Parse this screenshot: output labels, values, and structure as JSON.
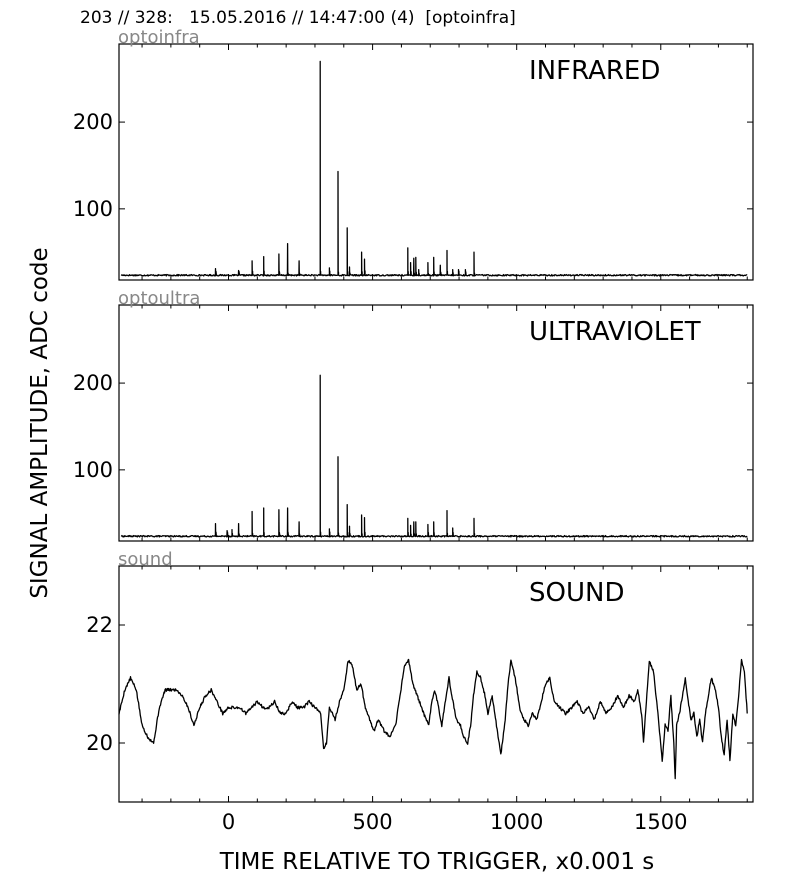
{
  "header": {
    "text": "203 // 328:   15.05.2016 // 14:47:00 (4)  [optoinfra]"
  },
  "figure": {
    "ylabel": "SIGNAL AMPLITUDE,  ADC code",
    "xlabel": "TIME RELATIVE TO TRIGGER,   x0.001 s"
  },
  "chart_data": [
    {
      "type": "line",
      "corner_label": "optoinfra",
      "title": "INFRARED",
      "xlim": [
        -380,
        1820
      ],
      "ylim": [
        18,
        290
      ],
      "yticks": [
        100,
        200
      ],
      "xticks": [
        0,
        500,
        1000,
        1500
      ],
      "grid": false,
      "baseline": 23.5,
      "spikes": [
        [
          -45,
          31
        ],
        [
          35,
          29
        ],
        [
          82,
          40
        ],
        [
          122,
          45
        ],
        [
          175,
          48
        ],
        [
          205,
          60
        ],
        [
          245,
          40
        ],
        [
          318,
          270
        ],
        [
          350,
          32
        ],
        [
          380,
          143
        ],
        [
          412,
          78
        ],
        [
          420,
          33
        ],
        [
          462,
          50
        ],
        [
          472,
          42
        ],
        [
          622,
          55
        ],
        [
          632,
          38
        ],
        [
          643,
          43
        ],
        [
          650,
          44
        ],
        [
          660,
          30
        ],
        [
          692,
          38
        ],
        [
          712,
          44
        ],
        [
          735,
          35
        ],
        [
          758,
          52
        ],
        [
          778,
          30
        ],
        [
          798,
          30
        ],
        [
          822,
          30
        ],
        [
          852,
          50
        ]
      ]
    },
    {
      "type": "line",
      "corner_label": "optoultra",
      "title": "ULTRAVIOLET",
      "xlim": [
        -380,
        1820
      ],
      "ylim": [
        18,
        290
      ],
      "yticks": [
        100,
        200
      ],
      "xticks": [
        0,
        500,
        1000,
        1500
      ],
      "grid": false,
      "baseline": 23.5,
      "spikes": [
        [
          -45,
          38
        ],
        [
          -5,
          30
        ],
        [
          12,
          31
        ],
        [
          35,
          38
        ],
        [
          82,
          52
        ],
        [
          122,
          56
        ],
        [
          175,
          54
        ],
        [
          205,
          56
        ],
        [
          245,
          40
        ],
        [
          318,
          209
        ],
        [
          350,
          32
        ],
        [
          380,
          115
        ],
        [
          412,
          60
        ],
        [
          420,
          35
        ],
        [
          462,
          48
        ],
        [
          472,
          45
        ],
        [
          622,
          44
        ],
        [
          632,
          36
        ],
        [
          643,
          40
        ],
        [
          650,
          40
        ],
        [
          692,
          37
        ],
        [
          712,
          40
        ],
        [
          758,
          53
        ],
        [
          778,
          33
        ],
        [
          852,
          44
        ]
      ]
    },
    {
      "type": "line",
      "corner_label": "sound",
      "title": "SOUND",
      "xlim": [
        -380,
        1820
      ],
      "ylim": [
        19.0,
        23.0
      ],
      "yticks": [
        20,
        22
      ],
      "xticks": [
        0,
        500,
        1000,
        1500
      ],
      "grid": false,
      "points": [
        [
          -380,
          20.5
        ],
        [
          -360,
          20.9
        ],
        [
          -340,
          21.1
        ],
        [
          -320,
          20.9
        ],
        [
          -300,
          20.3
        ],
        [
          -280,
          20.1
        ],
        [
          -260,
          20.0
        ],
        [
          -240,
          20.6
        ],
        [
          -220,
          20.9
        ],
        [
          -200,
          20.9
        ],
        [
          -180,
          20.9
        ],
        [
          -160,
          20.8
        ],
        [
          -140,
          20.6
        ],
        [
          -120,
          20.3
        ],
        [
          -100,
          20.6
        ],
        [
          -80,
          20.8
        ],
        [
          -60,
          20.9
        ],
        [
          -40,
          20.7
        ],
        [
          -20,
          20.5
        ],
        [
          0,
          20.6
        ],
        [
          20,
          20.6
        ],
        [
          40,
          20.6
        ],
        [
          60,
          20.5
        ],
        [
          80,
          20.6
        ],
        [
          100,
          20.7
        ],
        [
          120,
          20.6
        ],
        [
          140,
          20.6
        ],
        [
          160,
          20.7
        ],
        [
          180,
          20.5
        ],
        [
          200,
          20.5
        ],
        [
          220,
          20.7
        ],
        [
          240,
          20.6
        ],
        [
          260,
          20.6
        ],
        [
          280,
          20.7
        ],
        [
          300,
          20.6
        ],
        [
          320,
          20.5
        ],
        [
          330,
          19.9
        ],
        [
          340,
          20.0
        ],
        [
          350,
          20.6
        ],
        [
          370,
          20.4
        ],
        [
          385,
          20.7
        ],
        [
          400,
          20.9
        ],
        [
          415,
          21.4
        ],
        [
          430,
          21.3
        ],
        [
          445,
          20.9
        ],
        [
          460,
          21.0
        ],
        [
          475,
          20.6
        ],
        [
          490,
          20.4
        ],
        [
          505,
          20.2
        ],
        [
          520,
          20.4
        ],
        [
          540,
          20.2
        ],
        [
          560,
          20.1
        ],
        [
          580,
          20.3
        ],
        [
          595,
          20.8
        ],
        [
          610,
          21.3
        ],
        [
          625,
          21.4
        ],
        [
          640,
          21.0
        ],
        [
          655,
          20.8
        ],
        [
          670,
          20.6
        ],
        [
          685,
          20.4
        ],
        [
          695,
          20.3
        ],
        [
          705,
          20.7
        ],
        [
          715,
          20.9
        ],
        [
          725,
          20.7
        ],
        [
          740,
          20.3
        ],
        [
          755,
          20.8
        ],
        [
          765,
          21.1
        ],
        [
          775,
          20.8
        ],
        [
          790,
          20.4
        ],
        [
          805,
          20.3
        ],
        [
          815,
          20.1
        ],
        [
          830,
          20.0
        ],
        [
          840,
          20.3
        ],
        [
          850,
          20.8
        ],
        [
          862,
          21.2
        ],
        [
          875,
          21.1
        ],
        [
          890,
          20.8
        ],
        [
          900,
          20.5
        ],
        [
          915,
          20.8
        ],
        [
          930,
          20.3
        ],
        [
          945,
          19.8
        ],
        [
          960,
          20.4
        ],
        [
          970,
          21.0
        ],
        [
          980,
          21.4
        ],
        [
          995,
          21.1
        ],
        [
          1010,
          20.6
        ],
        [
          1025,
          20.4
        ],
        [
          1040,
          20.3
        ],
        [
          1055,
          20.5
        ],
        [
          1070,
          20.4
        ],
        [
          1085,
          20.7
        ],
        [
          1100,
          21.0
        ],
        [
          1115,
          21.1
        ],
        [
          1130,
          20.7
        ],
        [
          1150,
          20.6
        ],
        [
          1170,
          20.5
        ],
        [
          1190,
          20.6
        ],
        [
          1210,
          20.7
        ],
        [
          1230,
          20.5
        ],
        [
          1250,
          20.6
        ],
        [
          1270,
          20.4
        ],
        [
          1290,
          20.7
        ],
        [
          1310,
          20.5
        ],
        [
          1330,
          20.6
        ],
        [
          1350,
          20.8
        ],
        [
          1370,
          20.6
        ],
        [
          1390,
          20.8
        ],
        [
          1410,
          20.7
        ],
        [
          1420,
          20.9
        ],
        [
          1430,
          20.6
        ],
        [
          1435,
          20.4
        ],
        [
          1440,
          20.0
        ],
        [
          1450,
          20.7
        ],
        [
          1460,
          21.4
        ],
        [
          1475,
          21.2
        ],
        [
          1490,
          20.5
        ],
        [
          1505,
          19.7
        ],
        [
          1515,
          20.3
        ],
        [
          1525,
          20.2
        ],
        [
          1535,
          20.8
        ],
        [
          1545,
          20.0
        ],
        [
          1550,
          19.4
        ],
        [
          1555,
          20.3
        ],
        [
          1565,
          20.5
        ],
        [
          1575,
          20.8
        ],
        [
          1585,
          21.1
        ],
        [
          1595,
          20.7
        ],
        [
          1605,
          20.4
        ],
        [
          1615,
          20.5
        ],
        [
          1625,
          20.1
        ],
        [
          1635,
          20.4
        ],
        [
          1645,
          20.0
        ],
        [
          1655,
          20.5
        ],
        [
          1665,
          20.8
        ],
        [
          1675,
          21.1
        ],
        [
          1690,
          20.9
        ],
        [
          1700,
          20.6
        ],
        [
          1710,
          20.1
        ],
        [
          1720,
          19.8
        ],
        [
          1730,
          20.4
        ],
        [
          1740,
          19.7
        ],
        [
          1750,
          20.5
        ],
        [
          1760,
          20.3
        ],
        [
          1770,
          20.8
        ],
        [
          1780,
          21.4
        ],
        [
          1790,
          21.2
        ],
        [
          1800,
          20.5
        ]
      ]
    }
  ]
}
